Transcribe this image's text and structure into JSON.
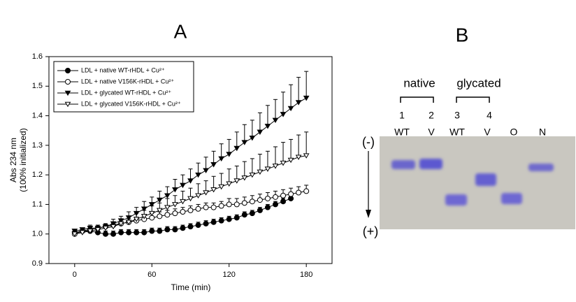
{
  "chart_data": {
    "type": "line",
    "title": "A",
    "xlabel": "Time (min)",
    "ylabel": [
      "Abs 234 nm",
      "(100% initialized)"
    ],
    "x": [
      0,
      6,
      12,
      18,
      24,
      30,
      36,
      42,
      48,
      54,
      60,
      66,
      72,
      78,
      84,
      90,
      96,
      102,
      108,
      114,
      120,
      126,
      132,
      138,
      144,
      150,
      156,
      162,
      168,
      174,
      180
    ],
    "xlim": [
      -20,
      200
    ],
    "xticks": [
      0,
      60,
      120,
      180
    ],
    "ylim": [
      0.9,
      1.6
    ],
    "yticks": [
      0.9,
      {
        "value": 1,
        "label": "1.0"
      },
      1.1,
      1.2,
      1.3,
      1.4,
      1.5,
      1.6
    ],
    "legend": "upper left",
    "series": [
      {
        "name": "LDL + native WT-rHDL + Cu²⁺",
        "color": "#000000",
        "marker": "circle",
        "filled": true,
        "values": [
          1.005,
          1.01,
          1.01,
          1.005,
          1.0,
          1.0,
          1.005,
          1.005,
          1.005,
          1.005,
          1.01,
          1.01,
          1.015,
          1.015,
          1.02,
          1.025,
          1.03,
          1.035,
          1.04,
          1.045,
          1.05,
          1.055,
          1.065,
          1.07,
          1.08,
          1.09,
          1.1,
          1.11,
          1.12,
          null,
          null
        ],
        "errors": [
          0.01,
          0.01,
          0.01,
          0.01,
          0.01,
          0.01,
          0.01,
          0.01,
          0.01,
          0.01,
          0.01,
          0.01,
          0.01,
          0.01,
          0.01,
          0.01,
          0.01,
          0.01,
          0.01,
          0.01,
          0.01,
          0.01,
          0.01,
          0.01,
          0.01,
          0.01,
          0.01,
          0.01,
          0.01,
          null,
          null
        ]
      },
      {
        "name": "LDL + native V156K-rHDL + Cu²⁺",
        "color": "#000000",
        "marker": "circle",
        "filled": false,
        "values": [
          1.0,
          1.01,
          1.015,
          1.02,
          1.025,
          1.03,
          1.035,
          1.04,
          1.045,
          1.05,
          1.055,
          1.06,
          1.065,
          1.07,
          1.075,
          1.08,
          1.085,
          1.09,
          1.09,
          1.095,
          1.1,
          1.1,
          1.105,
          1.11,
          1.115,
          1.12,
          1.125,
          1.13,
          1.135,
          1.14,
          1.145
        ],
        "errors": [
          0.01,
          0.01,
          0.01,
          0.01,
          0.01,
          0.01,
          0.012,
          0.012,
          0.012,
          0.012,
          0.015,
          0.015,
          0.015,
          0.015,
          0.015,
          0.015,
          0.015,
          0.015,
          0.015,
          0.015,
          0.02,
          0.02,
          0.02,
          0.02,
          0.02,
          0.02,
          0.02,
          0.02,
          0.02,
          0.02,
          0.02
        ]
      },
      {
        "name": "LDL + glycated WT-rHDL + Cu²⁺",
        "color": "#000000",
        "marker": "triangle-down",
        "filled": true,
        "values": [
          1.01,
          1.015,
          1.02,
          1.02,
          1.025,
          1.035,
          1.045,
          1.055,
          1.07,
          1.085,
          1.1,
          1.115,
          1.13,
          1.15,
          1.165,
          1.18,
          1.2,
          1.215,
          1.235,
          1.255,
          1.27,
          1.29,
          1.31,
          1.325,
          1.345,
          1.365,
          1.385,
          1.405,
          1.425,
          1.445,
          1.46
        ],
        "errors": [
          0.005,
          0.005,
          0.01,
          0.01,
          0.01,
          0.015,
          0.015,
          0.02,
          0.02,
          0.025,
          0.025,
          0.03,
          0.03,
          0.035,
          0.035,
          0.04,
          0.04,
          0.045,
          0.045,
          0.05,
          0.05,
          0.055,
          0.06,
          0.06,
          0.065,
          0.07,
          0.07,
          0.075,
          0.08,
          0.085,
          0.09
        ]
      },
      {
        "name": "LDL + glycated V156K-rHDL + Cu²⁺",
        "color": "#000000",
        "marker": "triangle-down",
        "filled": false,
        "values": [
          1.0,
          1.005,
          1.01,
          1.015,
          1.02,
          1.025,
          1.035,
          1.04,
          1.05,
          1.06,
          1.07,
          1.08,
          1.09,
          1.1,
          1.11,
          1.12,
          1.13,
          1.14,
          1.15,
          1.16,
          1.17,
          1.18,
          1.19,
          1.2,
          1.21,
          1.22,
          1.23,
          1.24,
          1.25,
          1.26,
          1.265
        ],
        "errors": [
          0.005,
          0.005,
          0.01,
          0.01,
          0.01,
          0.015,
          0.015,
          0.02,
          0.02,
          0.02,
          0.025,
          0.025,
          0.03,
          0.03,
          0.035,
          0.035,
          0.04,
          0.04,
          0.045,
          0.045,
          0.05,
          0.05,
          0.055,
          0.055,
          0.06,
          0.06,
          0.065,
          0.07,
          0.07,
          0.075,
          0.08
        ]
      }
    ]
  },
  "gel": {
    "label": "B",
    "groups": [
      "native",
      "glycated"
    ],
    "charge": [
      "(-)",
      "(+)"
    ],
    "lanes": [
      {
        "number": "1",
        "name": "WT"
      },
      {
        "number": "2",
        "name": "V"
      },
      {
        "number": "3",
        "name": "WT"
      },
      {
        "number": "4",
        "name": "V"
      },
      {
        "name": "O"
      },
      {
        "name": "N"
      }
    ]
  }
}
